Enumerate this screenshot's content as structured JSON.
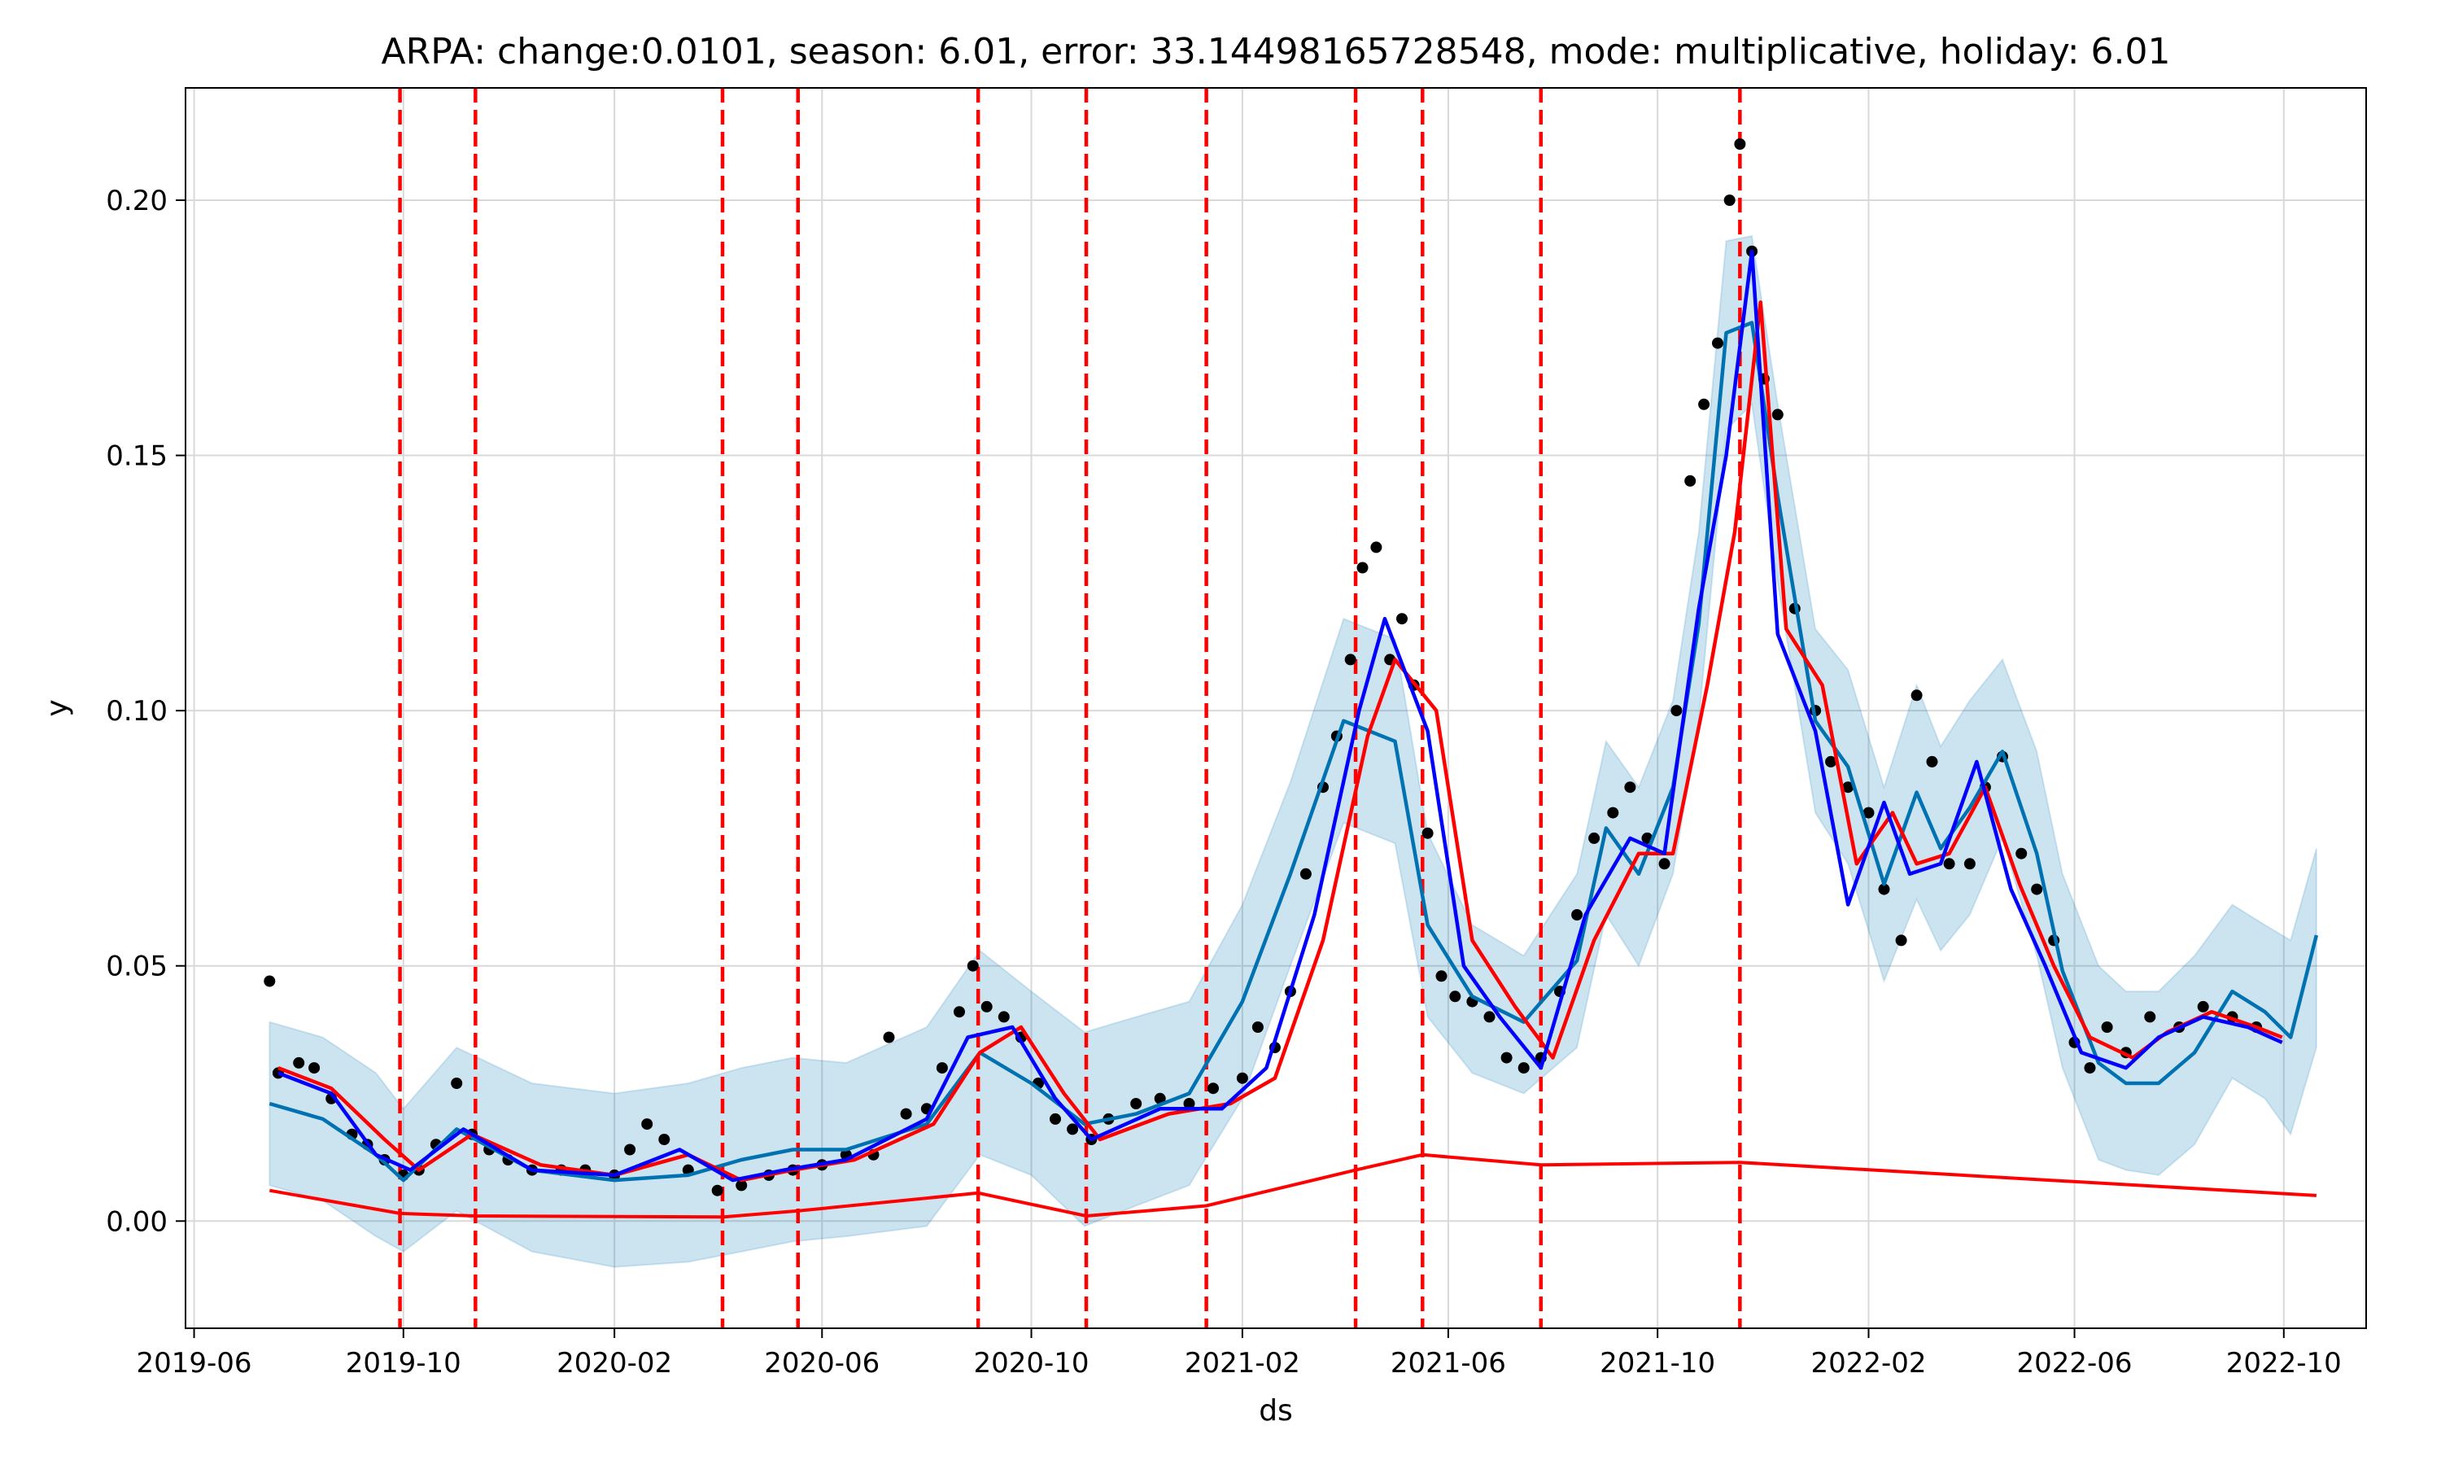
{
  "chart_data": {
    "type": "line",
    "title": "ARPA: change:0.0101, season: 6.01, error: 33.14498165728548, mode: multiplicative, holiday: 6.01",
    "xlabel": "ds",
    "ylabel": "y",
    "xlim": [
      "2019-05-27",
      "2022-11-18"
    ],
    "ylim": [
      -0.021,
      0.222
    ],
    "grid": true,
    "x_ticks": [
      "2019-06",
      "2019-10",
      "2020-02",
      "2020-06",
      "2020-10",
      "2021-02",
      "2021-06",
      "2021-10",
      "2022-02",
      "2022-06",
      "2022-10"
    ],
    "y_ticks": [
      0.0,
      0.05,
      0.1,
      0.15,
      0.2
    ],
    "y_tick_labels": [
      "0.00",
      "0.05",
      "0.10",
      "0.15",
      "0.20"
    ],
    "changepoints": [
      "2019-09-29",
      "2019-11-12",
      "2020-04-04",
      "2020-05-18",
      "2020-08-31",
      "2020-11-02",
      "2021-01-11",
      "2021-04-08",
      "2021-05-17",
      "2021-07-25",
      "2021-11-18"
    ],
    "colors": {
      "observed": "#000000",
      "forecast": "#0072B2",
      "uncertainty": "#0072B2",
      "smoothed": "#0000FF",
      "rolling": "#FF0000",
      "trend": "#FF0000",
      "changepoint": "#FF0000",
      "grid": "#D9D9D9"
    },
    "series": [
      {
        "role": "uncertainty_band",
        "x": [
          "2019-07-15",
          "2019-08-15",
          "2019-09-15",
          "2019-10-01",
          "2019-11-01",
          "2019-12-15",
          "2020-02-01",
          "2020-03-15",
          "2020-04-15",
          "2020-05-15",
          "2020-06-15",
          "2020-08-01",
          "2020-09-01",
          "2020-10-01",
          "2020-11-01",
          "2020-12-01",
          "2021-01-01",
          "2021-02-01",
          "2021-03-01",
          "2021-04-01",
          "2021-05-01",
          "2021-05-20",
          "2021-06-15",
          "2021-07-15",
          "2021-08-15",
          "2021-09-01",
          "2021-09-20",
          "2021-10-10",
          "2021-10-25",
          "2021-11-10",
          "2021-11-25",
          "2021-12-10",
          "2022-01-01",
          "2022-01-20",
          "2022-02-10",
          "2022-03-01",
          "2022-03-15",
          "2022-04-01",
          "2022-04-20",
          "2022-05-10",
          "2022-05-25",
          "2022-06-15",
          "2022-07-01",
          "2022-07-20",
          "2022-08-10",
          "2022-09-01",
          "2022-09-20",
          "2022-10-05",
          "2022-10-20"
        ],
        "lower": [
          0.007,
          0.004,
          -0.003,
          -0.006,
          0.002,
          -0.006,
          -0.009,
          -0.008,
          -0.006,
          -0.004,
          -0.003,
          -0.001,
          0.013,
          0.009,
          -0.001,
          0.003,
          0.007,
          0.024,
          0.05,
          0.078,
          0.074,
          0.04,
          0.029,
          0.025,
          0.034,
          0.06,
          0.05,
          0.068,
          0.098,
          0.155,
          0.16,
          0.125,
          0.08,
          0.07,
          0.047,
          0.063,
          0.053,
          0.06,
          0.075,
          0.052,
          0.03,
          0.012,
          0.01,
          0.009,
          0.015,
          0.028,
          0.024,
          0.017,
          0.034
        ],
        "upper": [
          0.039,
          0.036,
          0.029,
          0.022,
          0.034,
          0.027,
          0.025,
          0.027,
          0.03,
          0.032,
          0.031,
          0.038,
          0.053,
          0.045,
          0.037,
          0.04,
          0.043,
          0.062,
          0.086,
          0.118,
          0.114,
          0.076,
          0.058,
          0.052,
          0.068,
          0.094,
          0.085,
          0.102,
          0.135,
          0.192,
          0.193,
          0.16,
          0.116,
          0.108,
          0.085,
          0.105,
          0.093,
          0.102,
          0.11,
          0.092,
          0.068,
          0.05,
          0.045,
          0.045,
          0.052,
          0.062,
          0.058,
          0.055,
          0.073
        ]
      },
      {
        "role": "forecast",
        "name": "",
        "x": [
          "2019-07-15",
          "2019-08-15",
          "2019-09-15",
          "2019-10-01",
          "2019-11-01",
          "2019-12-15",
          "2020-02-01",
          "2020-03-15",
          "2020-04-15",
          "2020-05-15",
          "2020-06-15",
          "2020-08-01",
          "2020-09-01",
          "2020-10-01",
          "2020-11-01",
          "2020-12-01",
          "2021-01-01",
          "2021-02-01",
          "2021-03-01",
          "2021-04-01",
          "2021-05-01",
          "2021-05-20",
          "2021-06-15",
          "2021-07-15",
          "2021-08-15",
          "2021-09-01",
          "2021-09-20",
          "2021-10-10",
          "2021-10-25",
          "2021-11-10",
          "2021-11-25",
          "2021-12-10",
          "2022-01-01",
          "2022-01-20",
          "2022-02-10",
          "2022-03-01",
          "2022-03-15",
          "2022-04-01",
          "2022-04-20",
          "2022-05-10",
          "2022-05-25",
          "2022-06-15",
          "2022-07-01",
          "2022-07-20",
          "2022-08-10",
          "2022-09-01",
          "2022-09-20",
          "2022-10-05",
          "2022-10-20"
        ],
        "y": [
          0.023,
          0.02,
          0.013,
          0.008,
          0.018,
          0.01,
          0.008,
          0.009,
          0.012,
          0.014,
          0.014,
          0.019,
          0.033,
          0.027,
          0.019,
          0.021,
          0.025,
          0.043,
          0.068,
          0.098,
          0.094,
          0.058,
          0.044,
          0.039,
          0.051,
          0.077,
          0.068,
          0.085,
          0.117,
          0.174,
          0.176,
          0.142,
          0.098,
          0.089,
          0.066,
          0.084,
          0.073,
          0.081,
          0.092,
          0.072,
          0.049,
          0.031,
          0.027,
          0.027,
          0.033,
          0.045,
          0.041,
          0.036,
          0.056
        ]
      },
      {
        "role": "smoothed",
        "name": "",
        "x": [
          "2019-07-20",
          "2019-08-20",
          "2019-09-15",
          "2019-10-05",
          "2019-11-05",
          "2019-12-15",
          "2020-02-01",
          "2020-03-10",
          "2020-04-10",
          "2020-05-10",
          "2020-06-15",
          "2020-08-01",
          "2020-08-25",
          "2020-09-20",
          "2020-10-15",
          "2020-11-05",
          "2020-12-15",
          "2021-01-20",
          "2021-02-15",
          "2021-03-15",
          "2021-04-10",
          "2021-04-25",
          "2021-05-20",
          "2021-06-10",
          "2021-07-01",
          "2021-07-25",
          "2021-08-20",
          "2021-09-15",
          "2021-10-05",
          "2021-10-25",
          "2021-11-10",
          "2021-11-25",
          "2021-12-10",
          "2022-01-01",
          "2022-01-20",
          "2022-02-10",
          "2022-02-25",
          "2022-03-15",
          "2022-04-05",
          "2022-04-25",
          "2022-05-15",
          "2022-06-05",
          "2022-07-01",
          "2022-07-20",
          "2022-08-15",
          "2022-09-10",
          "2022-09-30"
        ],
        "y": [
          0.029,
          0.025,
          0.013,
          0.01,
          0.018,
          0.01,
          0.009,
          0.014,
          0.008,
          0.01,
          0.012,
          0.02,
          0.036,
          0.038,
          0.024,
          0.016,
          0.022,
          0.022,
          0.03,
          0.06,
          0.1,
          0.118,
          0.096,
          0.05,
          0.04,
          0.03,
          0.06,
          0.075,
          0.072,
          0.12,
          0.15,
          0.19,
          0.115,
          0.096,
          0.062,
          0.082,
          0.068,
          0.07,
          0.09,
          0.065,
          0.05,
          0.033,
          0.03,
          0.036,
          0.04,
          0.038,
          0.035
        ]
      },
      {
        "role": "rolling_mean",
        "name": "",
        "x": [
          "2019-07-20",
          "2019-08-20",
          "2019-09-20",
          "2019-10-10",
          "2019-11-10",
          "2019-12-20",
          "2020-02-01",
          "2020-03-15",
          "2020-04-15",
          "2020-05-15",
          "2020-06-20",
          "2020-08-05",
          "2020-09-01",
          "2020-09-25",
          "2020-10-20",
          "2020-11-10",
          "2020-12-20",
          "2021-01-25",
          "2021-02-20",
          "2021-03-20",
          "2021-04-15",
          "2021-05-01",
          "2021-05-25",
          "2021-06-15",
          "2021-07-10",
          "2021-08-01",
          "2021-08-25",
          "2021-09-20",
          "2021-10-10",
          "2021-10-30",
          "2021-11-15",
          "2021-11-30",
          "2021-12-15",
          "2022-01-05",
          "2022-01-25",
          "2022-02-15",
          "2022-03-01",
          "2022-03-20",
          "2022-04-10",
          "2022-04-30",
          "2022-05-20",
          "2022-06-10",
          "2022-07-05",
          "2022-07-25",
          "2022-08-20",
          "2022-09-15",
          "2022-09-30"
        ],
        "y": [
          0.03,
          0.026,
          0.016,
          0.01,
          0.017,
          0.011,
          0.009,
          0.013,
          0.008,
          0.01,
          0.012,
          0.019,
          0.033,
          0.038,
          0.025,
          0.016,
          0.021,
          0.023,
          0.028,
          0.055,
          0.095,
          0.11,
          0.1,
          0.055,
          0.042,
          0.032,
          0.055,
          0.072,
          0.072,
          0.105,
          0.135,
          0.18,
          0.116,
          0.105,
          0.07,
          0.08,
          0.07,
          0.072,
          0.085,
          0.066,
          0.05,
          0.036,
          0.032,
          0.037,
          0.041,
          0.038,
          0.036
        ]
      },
      {
        "role": "trend",
        "name": "",
        "x": [
          "2019-07-15",
          "2019-09-29",
          "2019-11-12",
          "2020-04-04",
          "2020-05-18",
          "2020-08-31",
          "2020-11-02",
          "2021-01-11",
          "2021-04-08",
          "2021-05-17",
          "2021-07-25",
          "2021-11-18",
          "2022-10-20"
        ],
        "y": [
          0.006,
          0.0015,
          0.001,
          0.0008,
          0.002,
          0.0055,
          0.001,
          0.003,
          0.01,
          0.013,
          0.011,
          0.0115,
          0.005
        ]
      },
      {
        "role": "observed",
        "name": "",
        "type": "scatter",
        "x": [
          "2019-07-15",
          "2019-07-20",
          "2019-08-01",
          "2019-08-10",
          "2019-08-20",
          "2019-09-01",
          "2019-09-10",
          "2019-09-20",
          "2019-10-01",
          "2019-10-10",
          "2019-10-20",
          "2019-11-01",
          "2019-11-10",
          "2019-11-20",
          "2019-12-01",
          "2019-12-15",
          "2020-01-01",
          "2020-01-15",
          "2020-02-01",
          "2020-02-10",
          "2020-02-20",
          "2020-03-01",
          "2020-03-15",
          "2020-04-01",
          "2020-04-15",
          "2020-05-01",
          "2020-05-15",
          "2020-06-01",
          "2020-06-15",
          "2020-07-01",
          "2020-07-10",
          "2020-07-20",
          "2020-08-01",
          "2020-08-10",
          "2020-08-20",
          "2020-08-28",
          "2020-09-05",
          "2020-09-15",
          "2020-09-25",
          "2020-10-05",
          "2020-10-15",
          "2020-10-25",
          "2020-11-05",
          "2020-11-15",
          "2020-12-01",
          "2020-12-15",
          "2021-01-01",
          "2021-01-15",
          "2021-02-01",
          "2021-02-10",
          "2021-02-20",
          "2021-03-01",
          "2021-03-10",
          "2021-03-20",
          "2021-03-28",
          "2021-04-05",
          "2021-04-12",
          "2021-04-20",
          "2021-04-28",
          "2021-05-05",
          "2021-05-12",
          "2021-05-20",
          "2021-05-28",
          "2021-06-05",
          "2021-06-15",
          "2021-06-25",
          "2021-07-05",
          "2021-07-15",
          "2021-07-25",
          "2021-08-05",
          "2021-08-15",
          "2021-08-25",
          "2021-09-05",
          "2021-09-15",
          "2021-09-25",
          "2021-10-05",
          "2021-10-12",
          "2021-10-20",
          "2021-10-28",
          "2021-11-05",
          "2021-11-12",
          "2021-11-18",
          "2021-11-25",
          "2021-12-02",
          "2021-12-10",
          "2021-12-20",
          "2022-01-01",
          "2022-01-10",
          "2022-01-20",
          "2022-02-01",
          "2022-02-10",
          "2022-02-20",
          "2022-03-01",
          "2022-03-10",
          "2022-03-20",
          "2022-04-01",
          "2022-04-10",
          "2022-04-20",
          "2022-05-01",
          "2022-05-10",
          "2022-05-20",
          "2022-06-01",
          "2022-06-10",
          "2022-06-20",
          "2022-07-01",
          "2022-07-15",
          "2022-08-01",
          "2022-08-15",
          "2022-09-01",
          "2022-09-15"
        ],
        "y": [
          0.047,
          0.029,
          0.031,
          0.03,
          0.024,
          0.017,
          0.015,
          0.012,
          0.009,
          0.01,
          0.015,
          0.027,
          0.017,
          0.014,
          0.012,
          0.01,
          0.01,
          0.01,
          0.009,
          0.014,
          0.019,
          0.016,
          0.01,
          0.006,
          0.007,
          0.009,
          0.01,
          0.011,
          0.013,
          0.013,
          0.036,
          0.021,
          0.022,
          0.03,
          0.041,
          0.05,
          0.042,
          0.04,
          0.036,
          0.027,
          0.02,
          0.018,
          0.016,
          0.02,
          0.023,
          0.024,
          0.023,
          0.026,
          0.028,
          0.038,
          0.034,
          0.045,
          0.068,
          0.085,
          0.095,
          0.11,
          0.128,
          0.132,
          0.11,
          0.118,
          0.105,
          0.076,
          0.048,
          0.044,
          0.043,
          0.04,
          0.032,
          0.03,
          0.032,
          0.045,
          0.06,
          0.075,
          0.08,
          0.085,
          0.075,
          0.07,
          0.1,
          0.145,
          0.16,
          0.172,
          0.2,
          0.211,
          0.19,
          0.165,
          0.158,
          0.12,
          0.1,
          0.09,
          0.085,
          0.08,
          0.065,
          0.055,
          0.103,
          0.09,
          0.07,
          0.07,
          0.085,
          0.091,
          0.072,
          0.065,
          0.055,
          0.035,
          0.03,
          0.038,
          0.033,
          0.04,
          0.038,
          0.042,
          0.04,
          0.038
        ]
      }
    ]
  }
}
